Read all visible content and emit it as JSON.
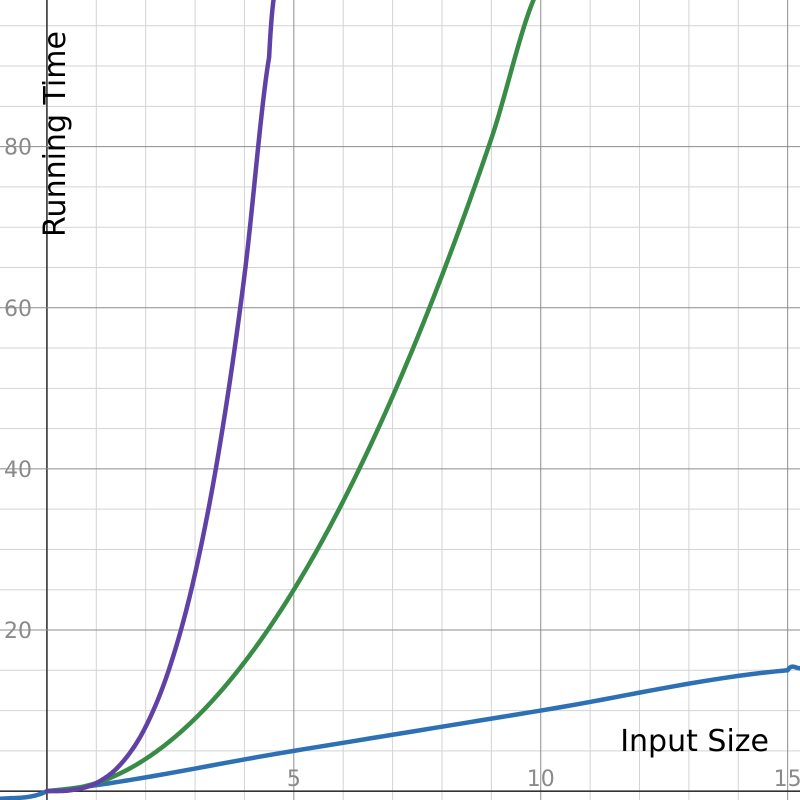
{
  "chart_data": {
    "type": "line",
    "title": "",
    "xlabel": "Input Size",
    "ylabel": "Running Time",
    "xlim": [
      -0.95,
      15.25
    ],
    "ylim": [
      -1.1,
      98.2
    ],
    "x_ticks": [
      5,
      10,
      15
    ],
    "y_ticks": [
      20,
      40,
      60,
      80
    ],
    "x_minor_step": 1,
    "y_minor_step": 5,
    "grid": true,
    "series": [
      {
        "color": "#2d70b3",
        "x": [
          -0.95,
          0,
          5,
          10,
          15,
          15.25
        ],
        "y": [
          -0.95,
          0,
          5,
          10,
          15,
          15.25
        ]
      },
      {
        "color": "#388c46",
        "x": [
          0,
          1,
          2,
          3,
          4,
          5,
          6,
          7,
          8,
          9,
          10
        ],
        "y": [
          0,
          1,
          4,
          9,
          16,
          25,
          36,
          49,
          64,
          81,
          100
        ]
      },
      {
        "color": "#6042a6",
        "x": [
          0,
          0.5,
          1,
          1.5,
          2,
          2.5,
          3,
          3.5,
          4,
          4.5,
          4.65
        ],
        "y": [
          0,
          0.13,
          1,
          3.38,
          8,
          15.63,
          27,
          42.88,
          64,
          91.13,
          100.5
        ]
      }
    ]
  }
}
